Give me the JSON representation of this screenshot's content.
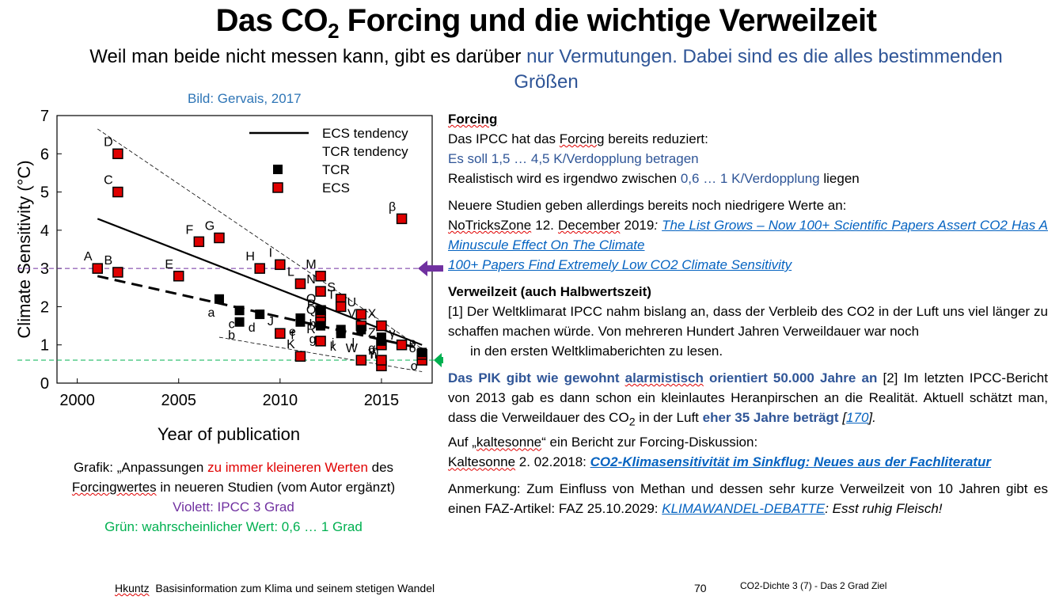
{
  "slide": {
    "title_pre": "Das CO",
    "title_sub": "2",
    "title_post": " Forcing und die wichtige Verweilzeit",
    "subtitle_black": "Weil man beide nicht messen kann, gibt es darüber ",
    "subtitle_blue": "nur Vermutungen. Dabei sind es die alles bestimmenden Größen",
    "credit": "Bild: Gervais, 2017"
  },
  "caption": {
    "l1a": "Grafik: „Anpassungen ",
    "l1red": "zu immer kleineren Werten",
    "l1b": " des",
    "l2a": "Forcingwertes",
    "l2b": " in neueren Studien (vom Autor ergänzt)",
    "l3": "Violett: IPCC 3 Grad",
    "l4": "Grün: wahrscheinlicher Wert: 0,6 … 1 Grad"
  },
  "right": {
    "forcing_head": "Forcing",
    "f1a": "Das IPCC hat das ",
    "f1b": "Forcing",
    "f1c": " bereits reduziert:",
    "f2": "Es soll 1,5 … 4,5 K/Verdopplung betragen",
    "f3a": "Realistisch wird es irgendwo zwischen ",
    "f3b": "0,6 … 1 K/Verdopplung",
    "f3c": " liegen",
    "n1": "Neuere Studien geben allerdings bereits noch niedrigere Werte an:",
    "n2a": "NoTricksZone",
    "n2b": " 12. ",
    "n2c": "December",
    "n2d": " 2019",
    "n2e": ": ",
    "n2link": "The List Grows – Now 100+ Scientific Papers Assert CO2 Has A Minuscule Effect On The Climate",
    "n3link": "100+ Papers Find Extremely Low CO2 Climate Sensitivity",
    "v_head": "Verweilzeit (auch Halbwertszeit)",
    "v1": "[1] Der Weltklimarat IPCC nahm bislang an, dass der Verbleib des CO2 in der Luft uns viel länger  zu schaffen machen würde. Von mehreren Hundert Jahren Verweildauer war noch",
    "v1b": "in den ersten Weltklimaberichten zu lesen.",
    "p1a": "Das PIK gibt wie gewohnt ",
    "p1b": "alarmistisch",
    "p1c": " orientiert 50.000 Jahre an",
    "p1d": " [2] Im letzten IPCC-Bericht von 2013 gab es dann schon ein kleinlautes Heranpirschen an die Realität. Aktuell  schätzt man, dass die Verweildauer des CO",
    "p1sub": "2",
    "p1e": " in der Luft ",
    "p1f": "eher 35 Jahre beträgt",
    "p1g": " [",
    "p1link": "170",
    "p1h": "].",
    "k1a": "Auf „",
    "k1b": "kaltesonne",
    "k1c": "“ ein Bericht zur Forcing-Diskussion:",
    "k2a": "Kaltesonne",
    "k2b": " 2. 02.2018: ",
    "k2link": "CO2-Klimasensitivität im Sinkflug: Neues aus der Fachliteratur",
    "a1": "Anmerkung: Zum Einfluss von Methan und dessen sehr kurze Verweilzeit von 10 Jahren gibt es einen FAZ-Artikel: FAZ 25.10.2029: ",
    "a1link": "KLIMAWANDEL-DEBATTE",
    "a1end": ": Esst ruhig Fleisch!"
  },
  "footer": {
    "author": "Hkuntz",
    "text": "  Basisinformation zum Klima und seinem stetigen Wandel",
    "page": "70",
    "right": "CO2-Dichte 3 (7) - Das 2 Grad Ziel"
  },
  "chart_data": {
    "type": "scatter",
    "xlabel": "Year of publication",
    "ylabel": "Climate Sensitivity (°C)",
    "xlim": [
      1999,
      2017.5
    ],
    "ylim": [
      0,
      7
    ],
    "xticks": [
      2000,
      2005,
      2010,
      2015
    ],
    "yticks": [
      0,
      1,
      2,
      3,
      4,
      5,
      6,
      7
    ],
    "legend": [
      "ECS tendency",
      "TCR tendency",
      "TCR",
      "ECS"
    ],
    "legend_position": "top-right",
    "ecs": [
      {
        "x": 2001,
        "y": 3.0,
        "label": "A"
      },
      {
        "x": 2002,
        "y": 2.9,
        "label": "B"
      },
      {
        "x": 2002,
        "y": 5.0,
        "label": "C"
      },
      {
        "x": 2002,
        "y": 6.0,
        "label": "D"
      },
      {
        "x": 2005,
        "y": 2.8,
        "label": "E"
      },
      {
        "x": 2006,
        "y": 3.7,
        "label": "F"
      },
      {
        "x": 2007,
        "y": 3.8,
        "label": "G"
      },
      {
        "x": 2009,
        "y": 3.0,
        "label": "H"
      },
      {
        "x": 2010,
        "y": 3.1,
        "label": "I"
      },
      {
        "x": 2010,
        "y": 1.3,
        "label": "J"
      },
      {
        "x": 2011,
        "y": 0.7,
        "label": "K"
      },
      {
        "x": 2011,
        "y": 2.6,
        "label": "L"
      },
      {
        "x": 2012,
        "y": 2.8,
        "label": "M"
      },
      {
        "x": 2012,
        "y": 2.4,
        "label": "N"
      },
      {
        "x": 2012,
        "y": 1.9,
        "label": "O"
      },
      {
        "x": 2012,
        "y": 1.75,
        "label": "P"
      },
      {
        "x": 2012,
        "y": 1.6,
        "label": "Q"
      },
      {
        "x": 2012,
        "y": 1.1,
        "label": "R"
      },
      {
        "x": 2013,
        "y": 2.2,
        "label": "S"
      },
      {
        "x": 2013,
        "y": 2.0,
        "label": "T"
      },
      {
        "x": 2014,
        "y": 1.8,
        "label": "U"
      },
      {
        "x": 2014,
        "y": 1.5,
        "label": "V"
      },
      {
        "x": 2014,
        "y": 0.6,
        "label": "W"
      },
      {
        "x": 2015,
        "y": 1.5,
        "label": "X"
      },
      {
        "x": 2015,
        "y": 0.45,
        "label": "Y"
      },
      {
        "x": 2015,
        "y": 1.0,
        "label": "Z"
      },
      {
        "x": 2015,
        "y": 0.6,
        "label": "α"
      },
      {
        "x": 2016,
        "y": 4.3,
        "label": "β"
      },
      {
        "x": 2016,
        "y": 1.0,
        "label": "γ"
      },
      {
        "x": 2017,
        "y": 0.6,
        "label": "δ"
      },
      {
        "x": 2017,
        "y": 0.75,
        "label": "ρ"
      }
    ],
    "tcr": [
      {
        "x": 2007,
        "y": 2.2,
        "label": "a"
      },
      {
        "x": 2008,
        "y": 1.6,
        "label": "b"
      },
      {
        "x": 2008,
        "y": 1.9,
        "label": "c"
      },
      {
        "x": 2009,
        "y": 1.8,
        "label": "d"
      },
      {
        "x": 2011,
        "y": 1.7,
        "label": "e"
      },
      {
        "x": 2011,
        "y": 1.6,
        "label": "f"
      },
      {
        "x": 2012,
        "y": 1.5,
        "label": "g"
      },
      {
        "x": 2012,
        "y": 1.9,
        "label": "h"
      },
      {
        "x": 2013,
        "y": 1.4,
        "label": "i"
      },
      {
        "x": 2013,
        "y": 1.3,
        "label": "k"
      },
      {
        "x": 2014,
        "y": 1.4,
        "label": "l"
      },
      {
        "x": 2015,
        "y": 1.2,
        "label": "m"
      },
      {
        "x": 2015,
        "y": 1.1,
        "label": "n"
      },
      {
        "x": 2017,
        "y": 0.8,
        "label": "o"
      }
    ],
    "ecs_tendency": {
      "x": [
        2001,
        2017
      ],
      "y": [
        4.3,
        1.0
      ]
    },
    "tcr_tendency": {
      "x": [
        2001,
        2017
      ],
      "y": [
        2.8,
        0.9
      ]
    },
    "envelope_upper": {
      "x": [
        2001,
        2017
      ],
      "y": [
        6.65,
        0.9
      ]
    },
    "envelope_lower": {
      "x": [
        2007,
        2017
      ],
      "y": [
        1.2,
        0.3
      ]
    },
    "ipcc_line_y": 3.0,
    "likely_line_y": 0.6
  }
}
